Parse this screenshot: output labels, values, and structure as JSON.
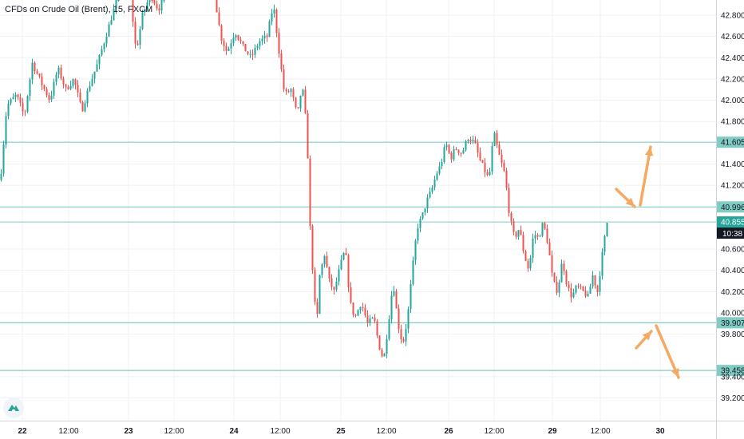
{
  "title": "CFDs on Crude Oil (Brent), 15, FXCM",
  "colors": {
    "up": "#26a69a",
    "down": "#ef5350",
    "level": "#80cbc4",
    "label_bg": "#80cbc4",
    "arrow": "#f5a962",
    "grid": "#eef1f6",
    "axis_text": "#131722"
  },
  "current_price": {
    "value": "40.855",
    "countdown": "10:38"
  },
  "chart_data": {
    "type": "candlestick",
    "title": "CFDs on Crude Oil (Brent), 15, FXCM",
    "y_ticks": [
      "42.800",
      "42.600",
      "42.400",
      "42.200",
      "42.000",
      "41.800",
      "41.400",
      "41.200",
      "40.600",
      "40.400",
      "40.200",
      "40.000",
      "39.800",
      "39.400",
      "39.200"
    ],
    "x_ticks": [
      "22",
      "12:00",
      "23",
      "12:00",
      "24",
      "12:00",
      "25",
      "12:00",
      "26",
      "12:00",
      "29",
      "12:00",
      "30"
    ],
    "ylim": [
      39.08,
      42.95
    ],
    "levels": [
      {
        "label": "41.605",
        "value": 41.605
      },
      {
        "label": "40.996",
        "value": 40.996
      },
      {
        "label": "39.907",
        "value": 39.907
      },
      {
        "label": "39.458",
        "value": 39.458
      }
    ],
    "price_path": [
      [
        0,
        41.25
      ],
      [
        8,
        41.95
      ],
      [
        20,
        42.05
      ],
      [
        30,
        41.85
      ],
      [
        40,
        42.35
      ],
      [
        52,
        42.15
      ],
      [
        62,
        42.0
      ],
      [
        72,
        42.3
      ],
      [
        82,
        42.1
      ],
      [
        92,
        42.2
      ],
      [
        102,
        41.9
      ],
      [
        112,
        42.15
      ],
      [
        122,
        42.35
      ],
      [
        132,
        42.6
      ],
      [
        142,
        42.85
      ],
      [
        152,
        43.1
      ],
      [
        162,
        43.05
      ],
      [
        170,
        42.45
      ],
      [
        178,
        42.8
      ],
      [
        188,
        43.0
      ],
      [
        198,
        42.85
      ],
      [
        208,
        43.05
      ],
      [
        268,
        43.0
      ],
      [
        276,
        42.6
      ],
      [
        284,
        42.45
      ],
      [
        294,
        42.65
      ],
      [
        304,
        42.5
      ],
      [
        314,
        42.4
      ],
      [
        324,
        42.55
      ],
      [
        334,
        42.6
      ],
      [
        342,
        42.9
      ],
      [
        350,
        42.4
      ],
      [
        356,
        42.05
      ],
      [
        364,
        42.1
      ],
      [
        372,
        41.85
      ],
      [
        378,
        42.15
      ],
      [
        384,
        41.7
      ],
      [
        388,
        40.8
      ],
      [
        392,
        40.3
      ],
      [
        396,
        39.85
      ],
      [
        400,
        40.35
      ],
      [
        406,
        40.55
      ],
      [
        412,
        40.3
      ],
      [
        418,
        40.2
      ],
      [
        426,
        40.45
      ],
      [
        432,
        40.6
      ],
      [
        438,
        40.1
      ],
      [
        444,
        39.95
      ],
      [
        452,
        40.1
      ],
      [
        460,
        39.9
      ],
      [
        468,
        39.95
      ],
      [
        474,
        39.7
      ],
      [
        480,
        39.55
      ],
      [
        486,
        39.9
      ],
      [
        492,
        40.3
      ],
      [
        498,
        39.9
      ],
      [
        504,
        39.7
      ],
      [
        510,
        39.95
      ],
      [
        516,
        40.4
      ],
      [
        522,
        40.8
      ],
      [
        528,
        40.9
      ],
      [
        534,
        41.05
      ],
      [
        540,
        41.15
      ],
      [
        546,
        41.3
      ],
      [
        552,
        41.4
      ],
      [
        558,
        41.6
      ],
      [
        564,
        41.45
      ],
      [
        570,
        41.55
      ],
      [
        578,
        41.5
      ],
      [
        586,
        41.65
      ],
      [
        594,
        41.6
      ],
      [
        600,
        41.45
      ],
      [
        606,
        41.35
      ],
      [
        612,
        41.25
      ],
      [
        618,
        41.7
      ],
      [
        624,
        41.5
      ],
      [
        632,
        41.3
      ],
      [
        638,
        40.9
      ],
      [
        644,
        40.7
      ],
      [
        650,
        40.8
      ],
      [
        656,
        40.55
      ],
      [
        662,
        40.4
      ],
      [
        668,
        40.75
      ],
      [
        674,
        40.7
      ],
      [
        680,
        40.85
      ],
      [
        686,
        40.65
      ],
      [
        692,
        40.3
      ],
      [
        698,
        40.2
      ],
      [
        704,
        40.5
      ],
      [
        710,
        40.25
      ],
      [
        716,
        40.15
      ],
      [
        722,
        40.25
      ],
      [
        730,
        40.2
      ],
      [
        736,
        40.15
      ],
      [
        742,
        40.35
      ],
      [
        748,
        40.2
      ],
      [
        754,
        40.55
      ],
      [
        760,
        40.85
      ]
    ]
  },
  "arrows": [
    "up-arrow",
    "up-arrow",
    "down-arrow",
    "down-arrow"
  ]
}
